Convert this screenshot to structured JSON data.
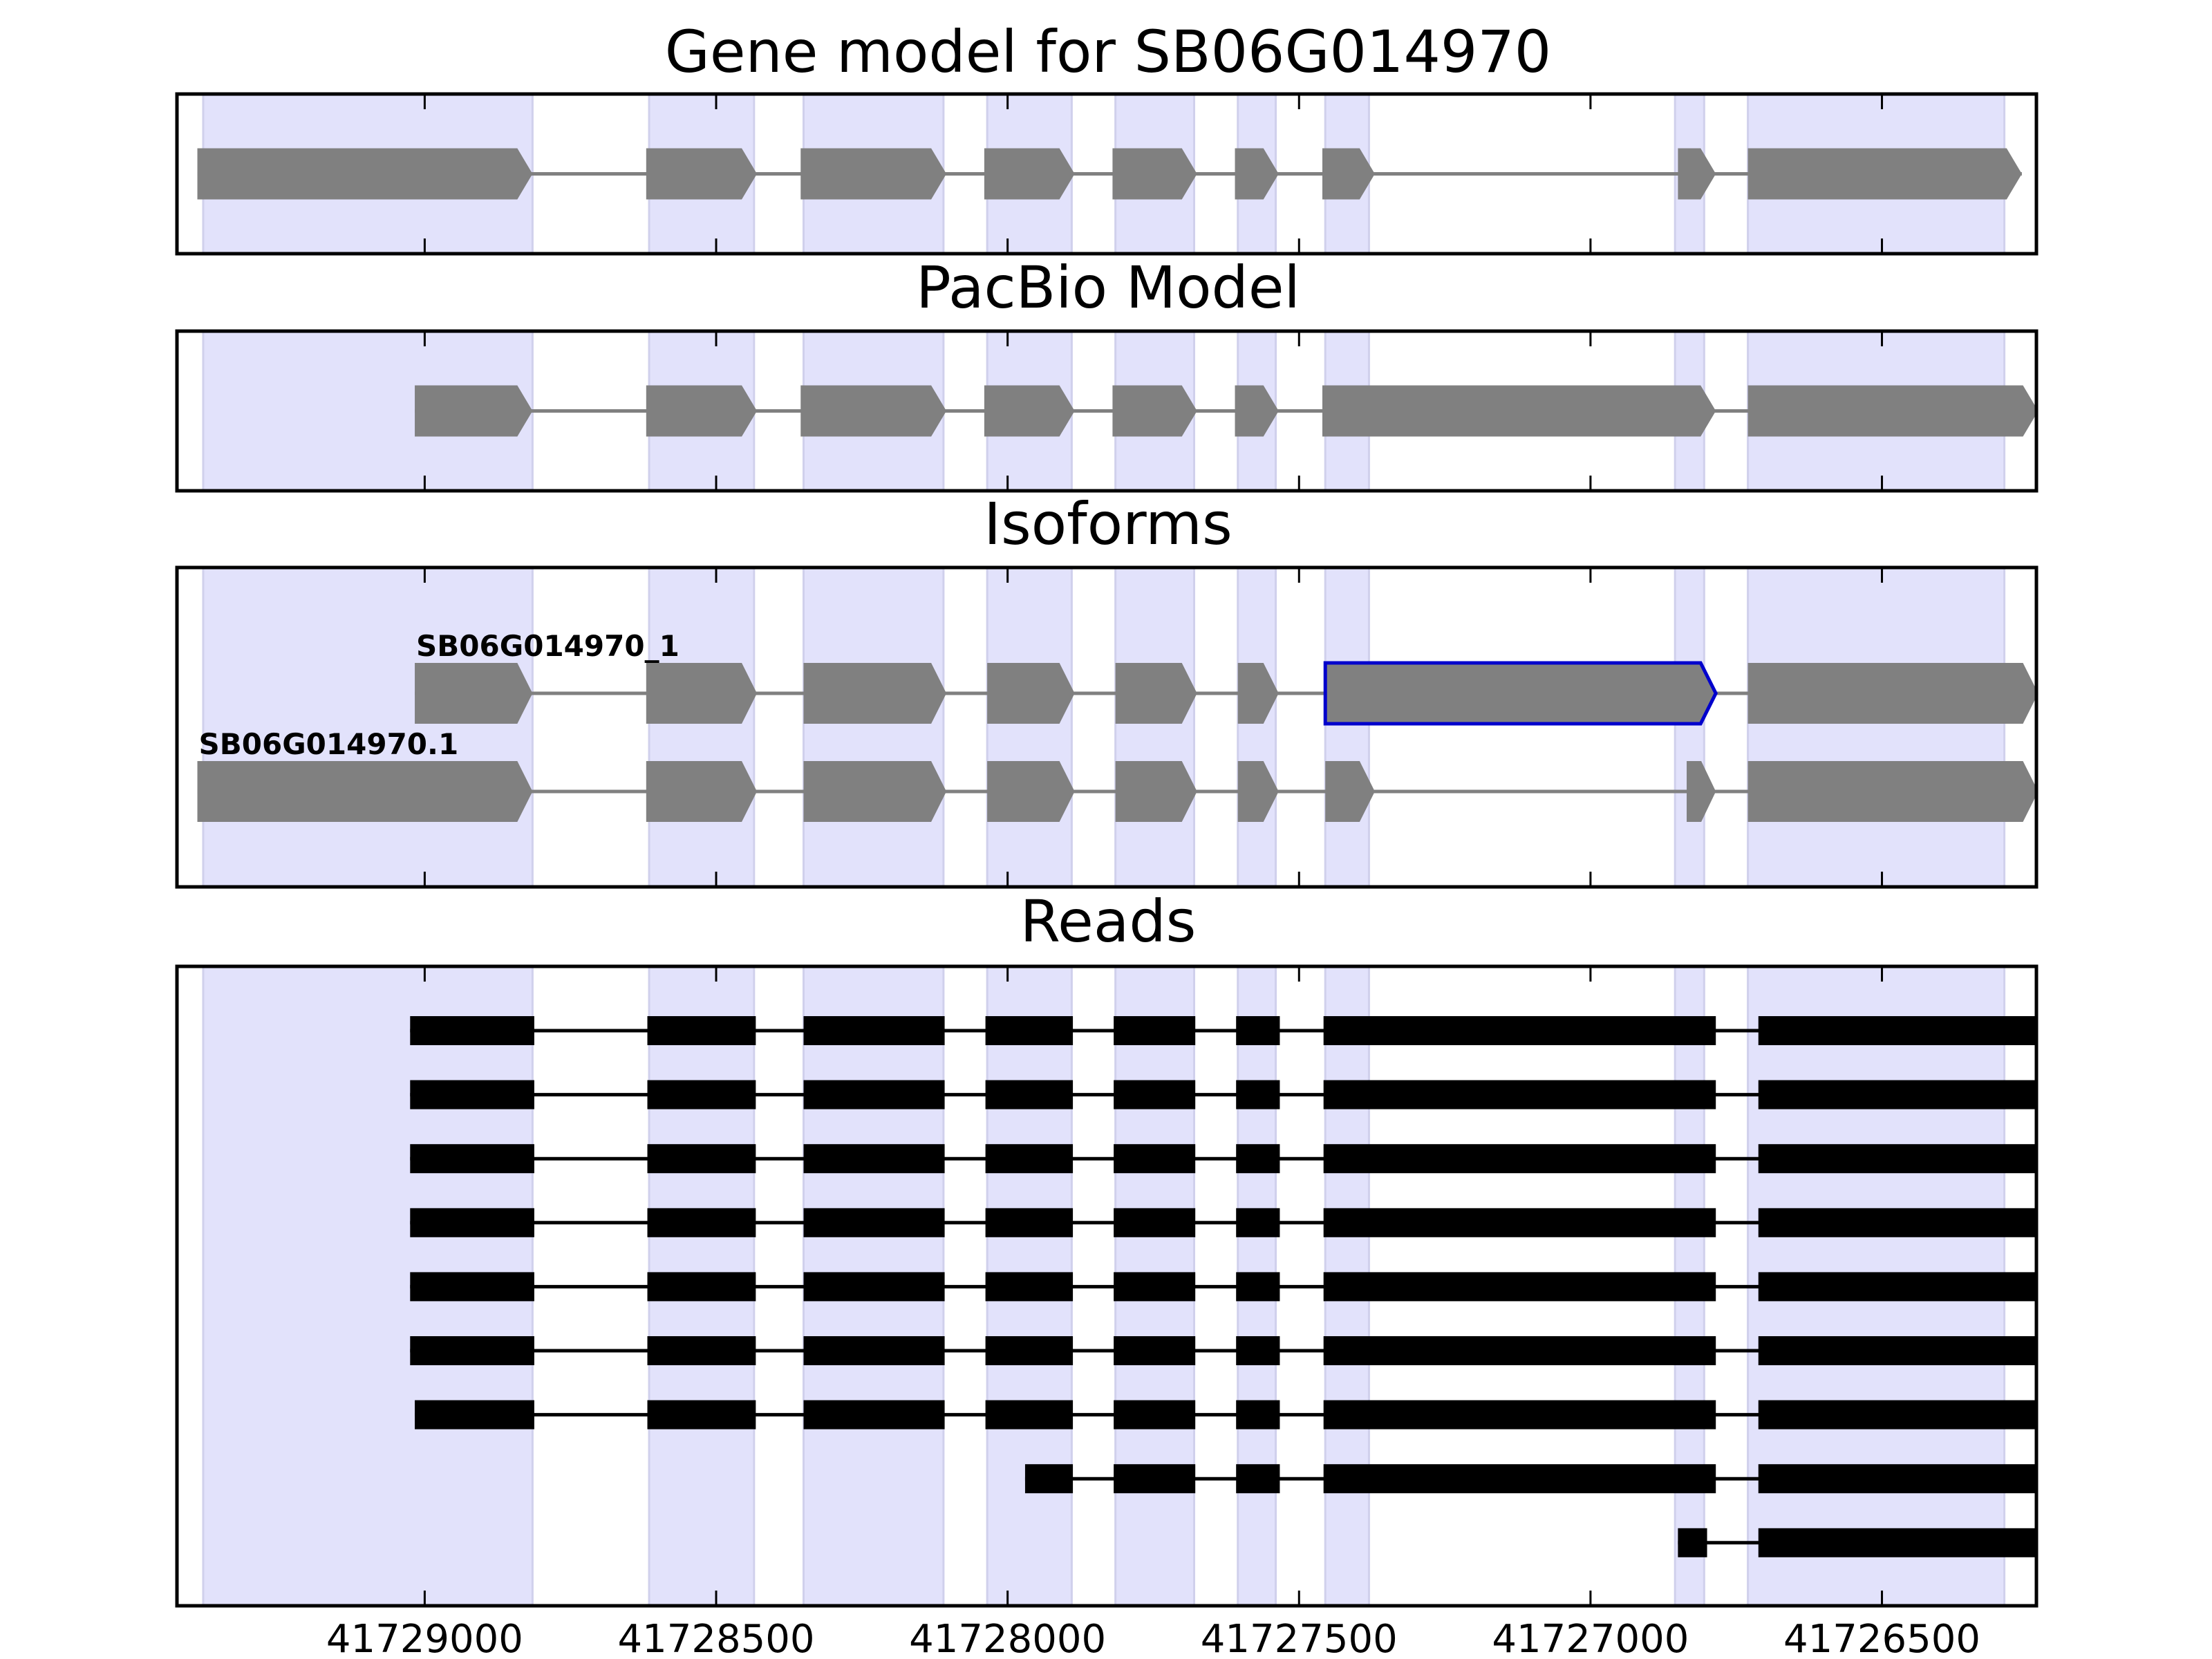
{
  "chart_data": {
    "type": "gene-structure",
    "xaxis": {
      "ticks": [
        41729000,
        41728500,
        41728000,
        41727500,
        41727000,
        41726500
      ],
      "tick_labels": [
        "41729000",
        "41728500",
        "41728000",
        "41727500",
        "41727000",
        "41726500"
      ],
      "range": [
        41729425,
        41726235
      ],
      "reversed": true
    },
    "highlight_color": "#e2e2fb",
    "exon_color": "#808080",
    "intron_color": "#808080",
    "read_color": "#000000",
    "selected_color": "#0000cc",
    "shaded_regions": [
      [
        41729380,
        41728815
      ],
      [
        41728615,
        41728435
      ],
      [
        41728350,
        41728110
      ],
      [
        41728035,
        41727890
      ],
      [
        41727815,
        41727680
      ],
      [
        41727605,
        41727540
      ],
      [
        41727455,
        41727380
      ],
      [
        41726855,
        41726805
      ],
      [
        41726730,
        41726290
      ]
    ],
    "panels": [
      {
        "title": "Gene model for SB06G014970",
        "rows": [
          {
            "label": "",
            "selected_exon": -1,
            "exons": [
              [
                41729390,
                41728815
              ],
              [
                41728620,
                41728430
              ],
              [
                41728355,
                41728105
              ],
              [
                41728040,
                41727885
              ],
              [
                41727820,
                41727675
              ],
              [
                41727610,
                41727535
              ],
              [
                41727460,
                41727370
              ],
              [
                41726850,
                41726785
              ],
              [
                41726730,
                41726260
              ]
            ]
          }
        ]
      },
      {
        "title": "PacBio Model",
        "rows": [
          {
            "label": "",
            "selected_exon": -1,
            "exons": [
              [
                41729017,
                41728815
              ],
              [
                41728620,
                41728430
              ],
              [
                41728355,
                41728105
              ],
              [
                41728040,
                41727885
              ],
              [
                41727820,
                41727675
              ],
              [
                41727610,
                41727535
              ],
              [
                41727460,
                41726785
              ],
              [
                41726730,
                41726232
              ]
            ]
          }
        ]
      },
      {
        "title": "Isoforms",
        "rows": [
          {
            "label": "SB06G014970_1",
            "selected_exon": 6,
            "exons": [
              [
                41729017,
                41728815
              ],
              [
                41728620,
                41728430
              ],
              [
                41728350,
                41728105
              ],
              [
                41728035,
                41727885
              ],
              [
                41727815,
                41727675
              ],
              [
                41727605,
                41727535
              ],
              [
                41727455,
                41726785
              ],
              [
                41726730,
                41726232
              ]
            ]
          },
          {
            "label": "SB06G014970.1",
            "selected_exon": -1,
            "exons": [
              [
                41729390,
                41728815
              ],
              [
                41728620,
                41728430
              ],
              [
                41728350,
                41728105
              ],
              [
                41728035,
                41727885
              ],
              [
                41727815,
                41727675
              ],
              [
                41727605,
                41727535
              ],
              [
                41727455,
                41727370
              ],
              [
                41726835,
                41726785
              ],
              [
                41726730,
                41726232
              ]
            ]
          }
        ]
      },
      {
        "title": "Reads",
        "reads": [
          [
            [
              41729025,
              41728812
            ],
            [
              41728618,
              41728432
            ],
            [
              41728350,
              41728108
            ],
            [
              41728038,
              41727888
            ],
            [
              41727818,
              41727678
            ],
            [
              41727608,
              41727533
            ],
            [
              41727458,
              41726785
            ],
            [
              41726712,
              41726233
            ]
          ],
          [
            [
              41729025,
              41728812
            ],
            [
              41728618,
              41728432
            ],
            [
              41728350,
              41728108
            ],
            [
              41728038,
              41727888
            ],
            [
              41727818,
              41727678
            ],
            [
              41727608,
              41727533
            ],
            [
              41727458,
              41726785
            ],
            [
              41726712,
              41726233
            ]
          ],
          [
            [
              41729025,
              41728812
            ],
            [
              41728618,
              41728432
            ],
            [
              41728350,
              41728108
            ],
            [
              41728038,
              41727888
            ],
            [
              41727818,
              41727678
            ],
            [
              41727608,
              41727533
            ],
            [
              41727458,
              41726785
            ],
            [
              41726712,
              41726233
            ]
          ],
          [
            [
              41729025,
              41728812
            ],
            [
              41728618,
              41728432
            ],
            [
              41728350,
              41728108
            ],
            [
              41728038,
              41727888
            ],
            [
              41727818,
              41727678
            ],
            [
              41727608,
              41727533
            ],
            [
              41727458,
              41726785
            ],
            [
              41726712,
              41726233
            ]
          ],
          [
            [
              41729025,
              41728812
            ],
            [
              41728618,
              41728432
            ],
            [
              41728350,
              41728108
            ],
            [
              41728038,
              41727888
            ],
            [
              41727818,
              41727678
            ],
            [
              41727608,
              41727533
            ],
            [
              41727458,
              41726785
            ],
            [
              41726712,
              41726233
            ]
          ],
          [
            [
              41729025,
              41728812
            ],
            [
              41728618,
              41728432
            ],
            [
              41728350,
              41728108
            ],
            [
              41728038,
              41727888
            ],
            [
              41727818,
              41727678
            ],
            [
              41727608,
              41727533
            ],
            [
              41727458,
              41726785
            ],
            [
              41726712,
              41726233
            ]
          ],
          [
            [
              41729017,
              41728812
            ],
            [
              41728618,
              41728432
            ],
            [
              41728350,
              41728108
            ],
            [
              41728038,
              41727888
            ],
            [
              41727818,
              41727678
            ],
            [
              41727608,
              41727533
            ],
            [
              41727458,
              41726785
            ],
            [
              41726712,
              41726233
            ]
          ],
          [
            [
              41727970,
              41727888
            ],
            [
              41727818,
              41727678
            ],
            [
              41727608,
              41727533
            ],
            [
              41727458,
              41726785
            ],
            [
              41726712,
              41726233
            ]
          ],
          [
            [
              41726850,
              41726800
            ],
            [
              41726712,
              41726233
            ]
          ]
        ]
      }
    ]
  }
}
